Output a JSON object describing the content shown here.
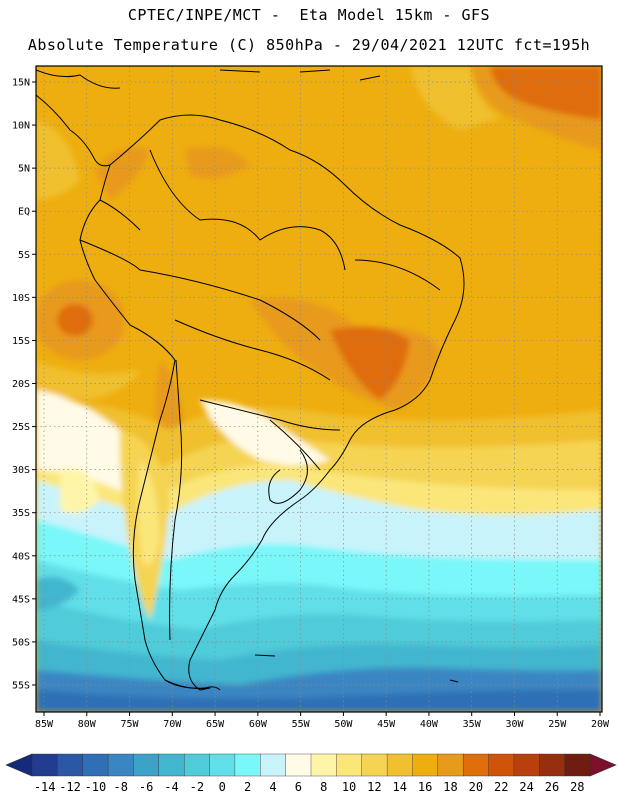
{
  "header": {
    "line1": "CPTEC/INPE/MCT -  Eta Model 15km - GFS",
    "line2": "Absolute Temperature (C) 850hPa - 29/04/2021 12UTC fct=195h"
  },
  "axes": {
    "lat_labels": [
      "15N",
      "10N",
      "5N",
      "EQ",
      "5S",
      "10S",
      "15S",
      "20S",
      "25S",
      "30S",
      "35S",
      "40S",
      "45S",
      "50S",
      "55S"
    ],
    "lon_labels": [
      "85W",
      "80W",
      "75W",
      "70W",
      "65W",
      "60W",
      "55W",
      "50W",
      "45W",
      "40W",
      "35W",
      "30W",
      "25W",
      "20W"
    ]
  },
  "colorbar": {
    "labels": [
      "-14",
      "-12",
      "-10",
      "-8",
      "-6",
      "-4",
      "-2",
      "0",
      "2",
      "4",
      "6",
      "8",
      "10",
      "12",
      "14",
      "16",
      "18",
      "20",
      "22",
      "24",
      "26",
      "28"
    ],
    "colors": [
      "#223d8f",
      "#2a58a5",
      "#2f6fb5",
      "#3a86c2",
      "#3ea2c8",
      "#42b6cf",
      "#4fcbd9",
      "#60dfe8",
      "#79f7f9",
      "#c9f3fb",
      "#fffbe6",
      "#fff5a8",
      "#fbe67a",
      "#f5d453",
      "#f0c02e",
      "#eeae0f",
      "#e89a1a",
      "#df6d0a",
      "#cf540a",
      "#b8400c",
      "#972e0d",
      "#6e1d10"
    ],
    "under_color": "#152a78",
    "over_color": "#7c0f2a"
  },
  "map_colors": {
    "frame": "#000000",
    "graticule": "#8a8a8a",
    "coast": "#000000"
  }
}
